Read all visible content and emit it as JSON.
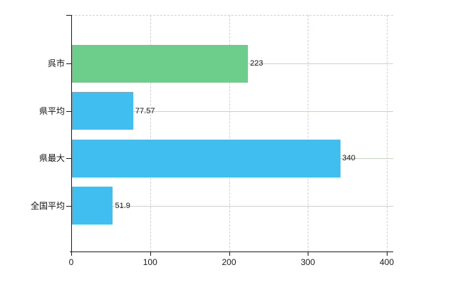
{
  "chart_data": {
    "type": "bar",
    "orientation": "horizontal",
    "title": "",
    "xlabel": "",
    "ylabel": "",
    "categories": [
      "呉市",
      "県平均",
      "県最大",
      "全国平均"
    ],
    "values": [
      223,
      77.57,
      340,
      51.9
    ],
    "value_labels": [
      "223",
      "77.57",
      "340",
      "51.9"
    ],
    "bar_colors": [
      "#6dce8c",
      "#41bef0",
      "#41bef0",
      "#41bef0"
    ],
    "x_axis": {
      "min": 0,
      "max": 400,
      "ticks": [
        0,
        100,
        200,
        300,
        400
      ],
      "tick_labels": [
        "0",
        "100",
        "200",
        "300",
        "400"
      ]
    },
    "grid": true,
    "legend": false
  },
  "colors": {
    "bar_green": "#6dce8c",
    "bar_blue": "#41bef0",
    "axis_line": "#1a1a1a",
    "horizontal_gridline": "#ccd4c8",
    "vertical_gridline": "#d5cdd2",
    "top_border": "#d2d2d2",
    "text": "#111111",
    "background": "#ffffff"
  }
}
